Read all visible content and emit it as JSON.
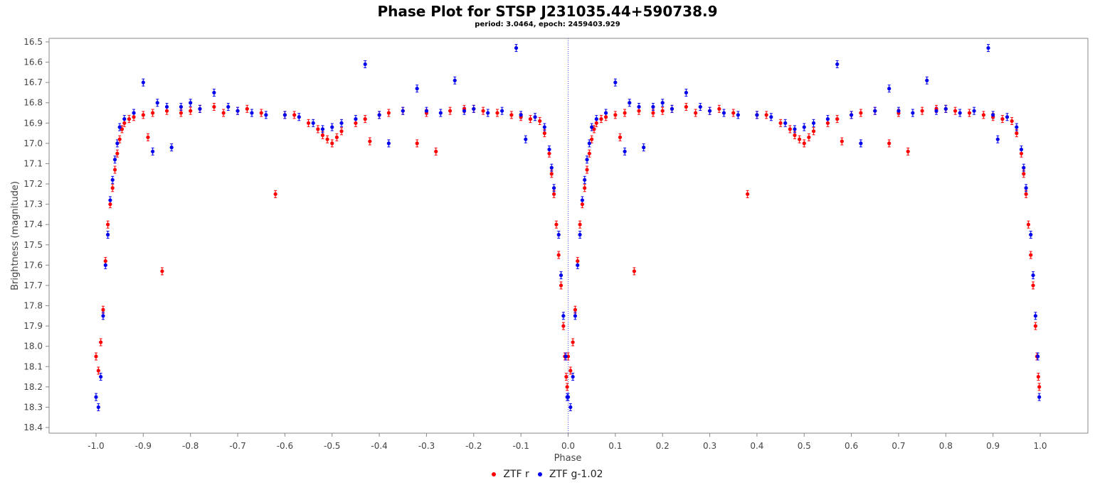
{
  "chart_data": {
    "type": "scatter",
    "title": "Phase Plot for STSP J231035.44+590738.9",
    "subtitle": "period: 3.0464, epoch: 2459403.929",
    "xlabel": "Phase",
    "ylabel": "Brightness (magnitude)",
    "xlim": [
      -1.1,
      1.1
    ],
    "ylim": [
      16.5,
      18.4
    ],
    "y_inverted": true,
    "x_ticks": [
      "-1.0",
      "-0.9",
      "-0.8",
      "-0.7",
      "-0.6",
      "-0.5",
      "-0.4",
      "-0.3",
      "-0.2",
      "-0.1",
      "0.0",
      "0.1",
      "0.2",
      "0.3",
      "0.4",
      "0.5",
      "0.6",
      "0.7",
      "0.8",
      "0.9",
      "1.0"
    ],
    "y_ticks": [
      "16.5",
      "16.6",
      "16.7",
      "16.8",
      "16.9",
      "17.0",
      "17.1",
      "17.2",
      "17.3",
      "17.4",
      "17.5",
      "17.6",
      "17.7",
      "17.8",
      "17.9",
      "18.0",
      "18.1",
      "18.2",
      "18.3",
      "18.4"
    ],
    "grid": false,
    "vertical_reference_line_x": 0.0,
    "legend_position": "bottom-center",
    "error_bars": true,
    "series": [
      {
        "name": "ZTF r",
        "color": "#ff0000",
        "points": [
          [
            0.0,
            18.05
          ],
          [
            0.005,
            18.12
          ],
          [
            0.01,
            17.98
          ],
          [
            0.015,
            17.82
          ],
          [
            0.02,
            17.58
          ],
          [
            0.025,
            17.4
          ],
          [
            0.03,
            17.3
          ],
          [
            0.035,
            17.22
          ],
          [
            0.04,
            17.13
          ],
          [
            0.045,
            17.05
          ],
          [
            0.05,
            16.98
          ],
          [
            0.055,
            16.93
          ],
          [
            0.06,
            16.9
          ],
          [
            0.07,
            16.88
          ],
          [
            0.08,
            16.87
          ],
          [
            0.1,
            16.86
          ],
          [
            0.12,
            16.85
          ],
          [
            0.11,
            16.97
          ],
          [
            0.14,
            17.63
          ],
          [
            0.15,
            16.84
          ],
          [
            0.18,
            16.85
          ],
          [
            0.2,
            16.84
          ],
          [
            0.22,
            16.83
          ],
          [
            0.25,
            16.82
          ],
          [
            0.27,
            16.85
          ],
          [
            0.3,
            16.84
          ],
          [
            0.32,
            16.83
          ],
          [
            0.35,
            16.85
          ],
          [
            0.38,
            17.25
          ],
          [
            0.4,
            16.86
          ],
          [
            0.42,
            16.86
          ],
          [
            0.45,
            16.9
          ],
          [
            0.47,
            16.93
          ],
          [
            0.48,
            16.96
          ],
          [
            0.49,
            16.98
          ],
          [
            0.5,
            17.0
          ],
          [
            0.51,
            16.97
          ],
          [
            0.52,
            16.94
          ],
          [
            0.55,
            16.9
          ],
          [
            0.57,
            16.88
          ],
          [
            0.58,
            16.99
          ],
          [
            0.6,
            16.86
          ],
          [
            0.62,
            16.85
          ],
          [
            0.65,
            16.84
          ],
          [
            0.68,
            17.0
          ],
          [
            0.7,
            16.85
          ],
          [
            0.72,
            17.04
          ],
          [
            0.75,
            16.84
          ],
          [
            0.78,
            16.83
          ],
          [
            0.8,
            16.83
          ],
          [
            0.82,
            16.84
          ],
          [
            0.85,
            16.85
          ],
          [
            0.88,
            16.86
          ],
          [
            0.9,
            16.87
          ],
          [
            0.92,
            16.88
          ],
          [
            0.94,
            16.89
          ],
          [
            0.95,
            16.95
          ],
          [
            0.96,
            17.05
          ],
          [
            0.965,
            17.15
          ],
          [
            0.97,
            17.25
          ],
          [
            0.975,
            17.4
          ],
          [
            0.98,
            17.55
          ],
          [
            0.985,
            17.7
          ],
          [
            0.99,
            17.9
          ],
          [
            0.993,
            18.05
          ],
          [
            0.996,
            18.15
          ],
          [
            0.998,
            18.2
          ]
        ]
      },
      {
        "name": "ZTF g-1.02",
        "color": "#0000ee",
        "points": [
          [
            0.0,
            18.25
          ],
          [
            0.005,
            18.3
          ],
          [
            0.01,
            18.15
          ],
          [
            0.015,
            17.85
          ],
          [
            0.02,
            17.6
          ],
          [
            0.025,
            17.45
          ],
          [
            0.03,
            17.28
          ],
          [
            0.035,
            17.18
          ],
          [
            0.04,
            17.08
          ],
          [
            0.045,
            17.0
          ],
          [
            0.05,
            16.92
          ],
          [
            0.06,
            16.88
          ],
          [
            0.08,
            16.85
          ],
          [
            0.1,
            16.7
          ],
          [
            0.12,
            17.04
          ],
          [
            0.13,
            16.8
          ],
          [
            0.15,
            16.82
          ],
          [
            0.16,
            17.02
          ],
          [
            0.18,
            16.82
          ],
          [
            0.2,
            16.8
          ],
          [
            0.22,
            16.83
          ],
          [
            0.25,
            16.75
          ],
          [
            0.28,
            16.82
          ],
          [
            0.3,
            16.84
          ],
          [
            0.33,
            16.85
          ],
          [
            0.36,
            16.86
          ],
          [
            0.4,
            16.86
          ],
          [
            0.43,
            16.87
          ],
          [
            0.46,
            16.9
          ],
          [
            0.48,
            16.93
          ],
          [
            0.5,
            16.92
          ],
          [
            0.52,
            16.9
          ],
          [
            0.55,
            16.88
          ],
          [
            0.57,
            16.61
          ],
          [
            0.6,
            16.86
          ],
          [
            0.62,
            17.0
          ],
          [
            0.65,
            16.84
          ],
          [
            0.68,
            16.73
          ],
          [
            0.7,
            16.84
          ],
          [
            0.73,
            16.85
          ],
          [
            0.76,
            16.69
          ],
          [
            0.78,
            16.84
          ],
          [
            0.8,
            16.83
          ],
          [
            0.83,
            16.85
          ],
          [
            0.86,
            16.84
          ],
          [
            0.89,
            16.53
          ],
          [
            0.9,
            16.86
          ],
          [
            0.91,
            16.98
          ],
          [
            0.93,
            16.87
          ],
          [
            0.95,
            16.92
          ],
          [
            0.96,
            17.03
          ],
          [
            0.965,
            17.12
          ],
          [
            0.97,
            17.22
          ],
          [
            0.98,
            17.45
          ],
          [
            0.985,
            17.65
          ],
          [
            0.99,
            17.85
          ],
          [
            0.995,
            18.05
          ],
          [
            0.998,
            18.25
          ]
        ]
      }
    ]
  }
}
